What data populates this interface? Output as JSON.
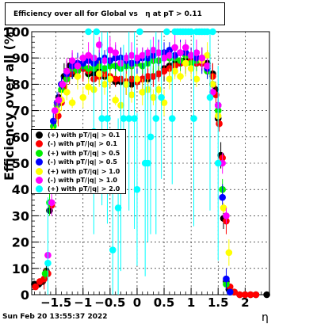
{
  "title": "Efficiency over all for Global vs   η at pT > 0.11",
  "datestamp": "Sun Feb 20 13:55:37 2022",
  "chart_data": {
    "type": "scatter",
    "title": "Efficiency over all for Global vs   η at pT > 0.11",
    "xlabel": "η",
    "ylabel": "Efficiency over all (%)",
    "xlim": [
      -1.95,
      2.45
    ],
    "ylim": [
      0,
      100
    ],
    "xticks": [
      -1.5,
      -1,
      -0.5,
      0,
      0.5,
      1,
      1.5,
      2
    ],
    "xtick_labels": [
      "−1.5",
      "−1",
      "−0.5",
      "0",
      "0.5",
      "1",
      "1.5",
      "2"
    ],
    "yticks": [
      0,
      10,
      20,
      30,
      40,
      50,
      60,
      70,
      80,
      90,
      100
    ],
    "ytick_labels": [
      "0",
      "10",
      "20",
      "30",
      "40",
      "50",
      "60",
      "70",
      "80",
      "90",
      "100"
    ],
    "grid": true,
    "legend_position": "middle-left",
    "series": [
      {
        "name": "(+) with pT/|q| > 0.1",
        "color": "#000000",
        "x": [
          -1.9,
          -1.82,
          -1.75,
          -1.68,
          -1.62,
          -1.56,
          -1.5,
          -1.45,
          -1.4,
          -1.35,
          -1.3,
          -1.25,
          -1.2,
          -1.1,
          -1.0,
          -0.9,
          -0.8,
          -0.7,
          -0.6,
          -0.5,
          -0.4,
          -0.3,
          -0.2,
          -0.1,
          0.0,
          0.1,
          0.2,
          0.3,
          0.4,
          0.5,
          0.6,
          0.7,
          0.8,
          0.9,
          1.0,
          1.1,
          1.2,
          1.3,
          1.4,
          1.45,
          1.5,
          1.55,
          1.6,
          1.65,
          1.7,
          1.8,
          1.9,
          2.0,
          2.1,
          2.2,
          2.4
        ],
        "y": [
          4,
          4,
          5,
          9,
          32,
          62,
          70,
          75,
          80,
          83,
          85,
          87,
          84,
          86,
          86,
          84,
          84,
          85,
          83,
          82,
          81,
          81,
          80,
          80,
          81,
          82,
          82,
          83,
          84,
          86,
          87,
          88,
          88,
          89,
          89,
          88,
          89,
          88,
          84,
          78,
          67,
          53,
          29,
          5,
          2,
          1,
          0,
          0,
          0,
          0,
          0
        ]
      },
      {
        "name": "(-) with pT/|q| > 0.1",
        "color": "#ff0000",
        "x": [
          -1.88,
          -1.8,
          -1.72,
          -1.65,
          -1.58,
          -1.52,
          -1.46,
          -1.4,
          -1.35,
          -1.3,
          -1.25,
          -1.2,
          -1.1,
          -1.0,
          -0.9,
          -0.8,
          -0.7,
          -0.6,
          -0.5,
          -0.4,
          -0.3,
          -0.2,
          -0.1,
          0.0,
          0.1,
          0.2,
          0.3,
          0.4,
          0.5,
          0.6,
          0.7,
          0.8,
          0.9,
          1.0,
          1.1,
          1.2,
          1.3,
          1.4,
          1.46,
          1.52,
          1.58,
          1.65,
          1.72,
          1.8,
          1.9,
          2.0,
          2.1,
          2.2
        ],
        "y": [
          3,
          5,
          6,
          8,
          34,
          60,
          68,
          73,
          79,
          82,
          84,
          85,
          87,
          86,
          85,
          82,
          83,
          84,
          83,
          82,
          82,
          81,
          82,
          81,
          82,
          83,
          83,
          84,
          85,
          86,
          87,
          88,
          88,
          89,
          88,
          88,
          87,
          83,
          76,
          65,
          52,
          28,
          3,
          1,
          0,
          0,
          0,
          0
        ]
      },
      {
        "name": "(+) with pT/|q| > 0.5",
        "color": "#00ee00",
        "x": [
          -1.7,
          -1.62,
          -1.55,
          -1.48,
          -1.4,
          -1.3,
          -1.2,
          -1.1,
          -1.0,
          -0.9,
          -0.8,
          -0.7,
          -0.6,
          -0.5,
          -0.4,
          -0.3,
          -0.2,
          -0.1,
          0.0,
          0.1,
          0.2,
          0.3,
          0.4,
          0.5,
          0.6,
          0.7,
          0.8,
          0.9,
          1.0,
          1.1,
          1.2,
          1.3,
          1.4,
          1.5,
          1.58,
          1.65,
          1.72
        ],
        "y": [
          8,
          35,
          64,
          72,
          78,
          82,
          86,
          85,
          87,
          86,
          86,
          87,
          86,
          87,
          87,
          86,
          87,
          87,
          88,
          87,
          88,
          89,
          89,
          90,
          90,
          90,
          89,
          91,
          88,
          89,
          90,
          85,
          80,
          70,
          40,
          4,
          1
        ]
      },
      {
        "name": "(-) with pT/|q| > 0.5",
        "color": "#0000ff",
        "x": [
          -1.6,
          -1.55,
          -1.48,
          -1.4,
          -1.3,
          -1.2,
          -1.1,
          -1.0,
          -0.9,
          -0.8,
          -0.7,
          -0.6,
          -0.5,
          -0.4,
          -0.3,
          -0.2,
          -0.1,
          0.0,
          0.1,
          0.2,
          0.3,
          0.4,
          0.5,
          0.6,
          0.7,
          0.8,
          0.9,
          1.0,
          1.1,
          1.2,
          1.3,
          1.4,
          1.5,
          1.58,
          1.65,
          1.72
        ],
        "y": [
          55,
          66,
          73,
          80,
          84,
          87,
          88,
          88,
          89,
          88,
          89,
          90,
          89,
          90,
          90,
          89,
          88,
          89,
          90,
          90,
          91,
          92,
          92,
          93,
          91,
          92,
          92,
          91,
          90,
          89,
          86,
          80,
          72,
          37,
          6,
          1
        ]
      },
      {
        "name": "(+) with pT/|q| > 1.0",
        "color": "#ffff00",
        "x": [
          -1.55,
          -1.48,
          -1.4,
          -1.3,
          -1.2,
          -1.1,
          -1.0,
          -0.9,
          -0.8,
          -0.7,
          -0.6,
          -0.5,
          -0.4,
          -0.3,
          -0.2,
          -0.1,
          0.0,
          0.1,
          0.2,
          0.3,
          0.4,
          0.5,
          0.6,
          0.7,
          0.8,
          0.9,
          1.0,
          1.1,
          1.2,
          1.3,
          1.4,
          1.5,
          1.6,
          1.7
        ],
        "y": [
          62,
          70,
          74,
          77,
          73,
          83,
          75,
          79,
          78,
          84,
          80,
          82,
          74,
          72,
          80,
          76,
          82,
          77,
          78,
          75,
          78,
          73,
          82,
          85,
          83,
          88,
          86,
          82,
          89,
          91,
          80,
          68,
          33,
          16
        ]
      },
      {
        "name": "(-) with pT/|q| > 1.0",
        "color": "#ff00ff",
        "x": [
          -1.65,
          -1.58,
          -1.52,
          -1.45,
          -1.38,
          -1.3,
          -1.2,
          -1.1,
          -1.0,
          -0.9,
          -0.8,
          -0.7,
          -0.6,
          -0.5,
          -0.4,
          -0.3,
          -0.2,
          -0.1,
          0.0,
          0.1,
          0.2,
          0.3,
          0.4,
          0.5,
          0.6,
          0.7,
          0.8,
          0.9,
          1.0,
          1.1,
          1.2,
          1.3,
          1.4,
          1.5,
          1.58,
          1.65
        ],
        "y": [
          15,
          35,
          70,
          74,
          80,
          85,
          89,
          87,
          90,
          91,
          90,
          95,
          89,
          93,
          92,
          88,
          90,
          91,
          90,
          91,
          92,
          93,
          92,
          90,
          91,
          94,
          92,
          94,
          91,
          92,
          90,
          87,
          77,
          72,
          50,
          30
        ]
      },
      {
        "name": "(+) with pT/|q| > 2.0",
        "color": "#00ffff",
        "x": [
          -1.65,
          -0.9,
          -0.8,
          -0.75,
          -0.65,
          -0.55,
          -0.45,
          -0.35,
          -0.3,
          -0.25,
          -0.15,
          -0.05,
          0.0,
          0.05,
          0.15,
          0.2,
          0.25,
          0.35,
          0.45,
          0.55,
          0.65,
          0.7,
          0.75,
          0.8,
          0.85,
          0.9,
          0.95,
          1.0,
          1.05,
          1.1,
          1.15,
          1.2,
          1.25,
          1.3,
          1.35,
          1.4,
          1.5
        ],
        "y": [
          12,
          100,
          62,
          100,
          67,
          67,
          17,
          33,
          50,
          67,
          67,
          67,
          40,
          100,
          50,
          50,
          60,
          67,
          75,
          100,
          67,
          100,
          100,
          100,
          100,
          100,
          100,
          100,
          67,
          100,
          100,
          100,
          100,
          100,
          75,
          100,
          50
        ]
      }
    ]
  }
}
